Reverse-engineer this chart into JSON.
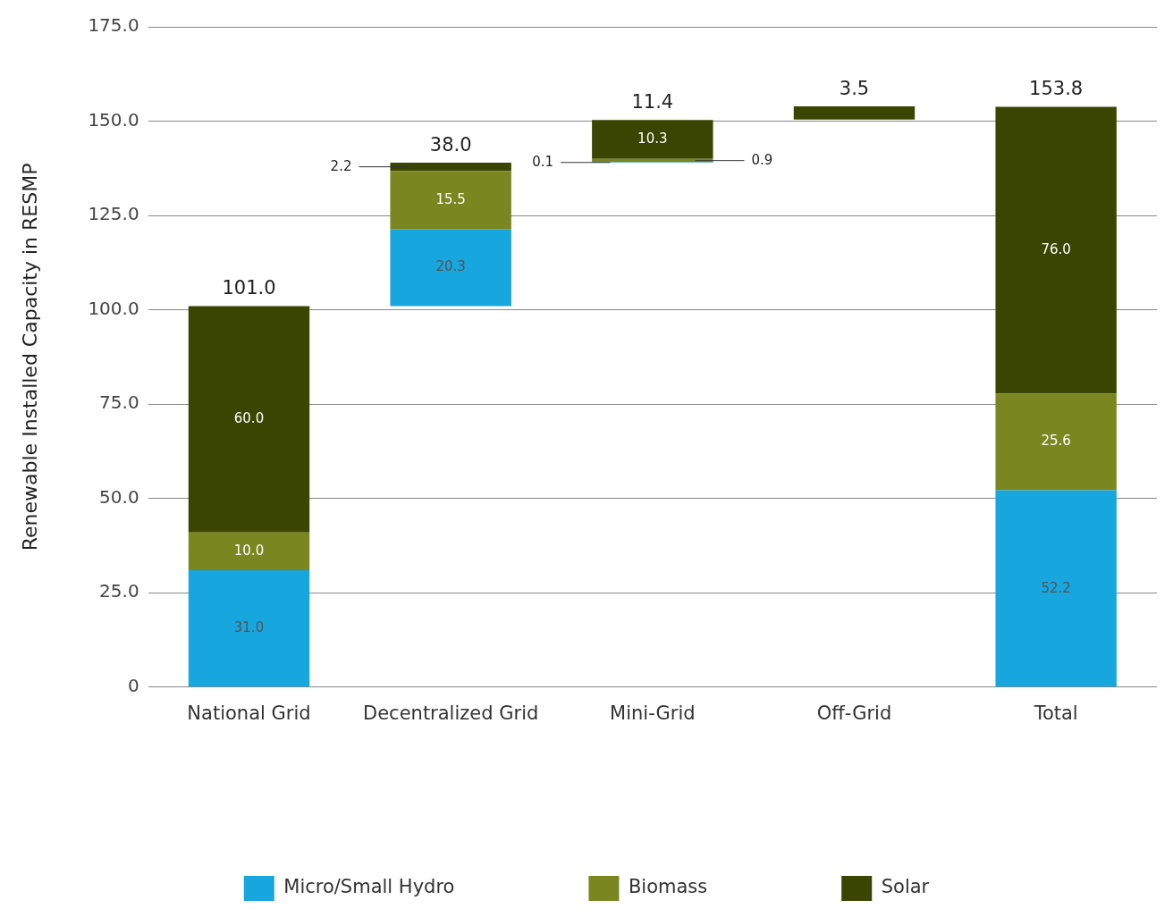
{
  "chart_data": {
    "type": "bar",
    "ylabel": "Renewable Installed Capacity in RESMP",
    "categories": [
      "National Grid",
      "Decentralized Grid",
      "Mini-Grid",
      "Off-Grid",
      "Total"
    ],
    "series": [
      {
        "name": "Micro/Small Hydro",
        "color": "#17a6de",
        "base": [
          0,
          101.0,
          139.0,
          null,
          0
        ],
        "values": [
          31.0,
          20.3,
          0.1,
          null,
          52.2
        ],
        "value_labels": [
          "31.0",
          "20.3",
          "0.1",
          null,
          "52.2"
        ]
      },
      {
        "name": "Biomass",
        "color": "#7a861f",
        "base": [
          31.0,
          121.3,
          139.1,
          null,
          52.2
        ],
        "values": [
          10.0,
          15.5,
          0.9,
          null,
          25.6
        ],
        "value_labels": [
          "10.0",
          "15.5",
          "0.9",
          null,
          "25.6"
        ]
      },
      {
        "name": "Solar",
        "color": "#3a4502",
        "base": [
          41.0,
          136.8,
          140.0,
          150.4,
          77.8
        ],
        "values": [
          60.0,
          2.2,
          10.3,
          3.5,
          76.0
        ],
        "value_labels": [
          "60.0",
          "2.2",
          "10.3",
          null,
          "76.0"
        ]
      }
    ],
    "totals": [
      "101.0",
      "38.0",
      "11.4",
      "3.5",
      "153.8"
    ],
    "ylim": [
      0,
      175
    ],
    "yticks": [
      0,
      {
        "value": 25,
        "label": "25.0"
      },
      {
        "value": 50,
        "label": "50.0"
      },
      {
        "value": 75,
        "label": "75.0"
      },
      {
        "value": 100,
        "label": "100.0"
      },
      {
        "value": 125,
        "label": "125.0"
      },
      {
        "value": 150,
        "label": "150.0"
      },
      {
        "value": 175,
        "label": "175.0"
      }
    ],
    "grid": "y",
    "legend": "bottom"
  }
}
